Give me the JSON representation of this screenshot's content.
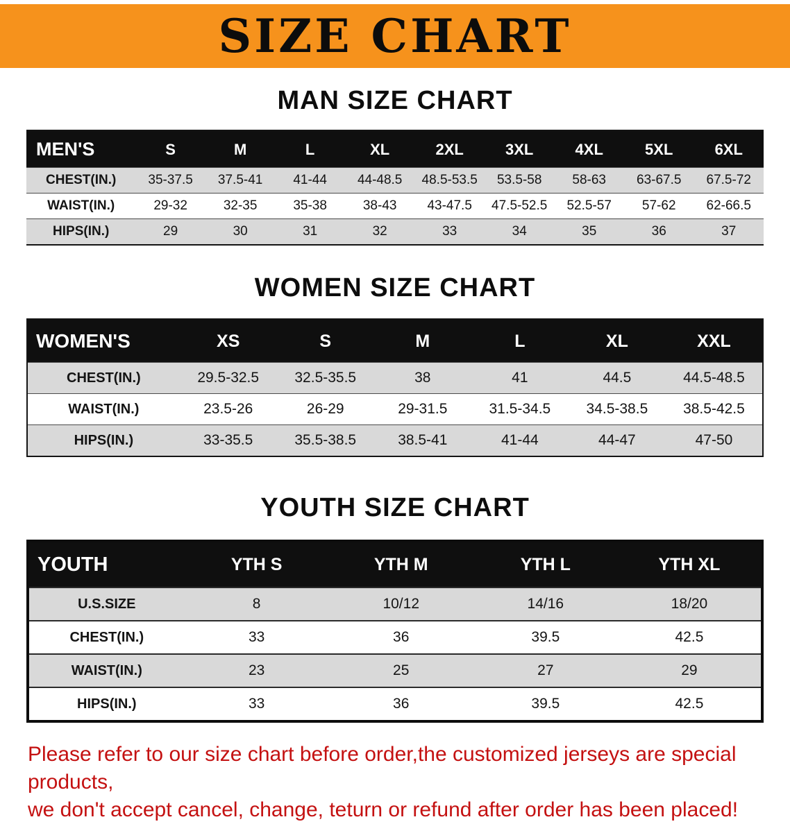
{
  "banner": {
    "title": "SIZE CHART",
    "bg_color": "#f6921c"
  },
  "sections": [
    {
      "title": "MAN SIZE CHART",
      "header": [
        "MEN'S",
        "S",
        "M",
        "L",
        "XL",
        "2XL",
        "3XL",
        "4XL",
        "5XL",
        "6XL"
      ],
      "rows": [
        [
          "CHEST(IN.)",
          "35-37.5",
          "37.5-41",
          "41-44",
          "44-48.5",
          "48.5-53.5",
          "53.5-58",
          "58-63",
          "63-67.5",
          "67.5-72"
        ],
        [
          "WAIST(IN.)",
          "29-32",
          "32-35",
          "35-38",
          "38-43",
          "43-47.5",
          "47.5-52.5",
          "52.5-57",
          "57-62",
          "62-66.5"
        ],
        [
          "HIPS(IN.)",
          "29",
          "30",
          "31",
          "32",
          "33",
          "34",
          "35",
          "36",
          "37"
        ]
      ]
    },
    {
      "title": "WOMEN SIZE CHART",
      "header": [
        "WOMEN'S",
        "XS",
        "S",
        "M",
        "L",
        "XL",
        "XXL"
      ],
      "rows": [
        [
          "CHEST(IN.)",
          "29.5-32.5",
          "32.5-35.5",
          "38",
          "41",
          "44.5",
          "44.5-48.5"
        ],
        [
          "WAIST(IN.)",
          "23.5-26",
          "26-29",
          "29-31.5",
          "31.5-34.5",
          "34.5-38.5",
          "38.5-42.5"
        ],
        [
          "HIPS(IN.)",
          "33-35.5",
          "35.5-38.5",
          "38.5-41",
          "41-44",
          "44-47",
          "47-50"
        ]
      ]
    },
    {
      "title": "YOUTH SIZE CHART",
      "header": [
        "YOUTH",
        "YTH S",
        "YTH M",
        "YTH L",
        "YTH XL"
      ],
      "rows": [
        [
          "U.S.SIZE",
          "8",
          "10/12",
          "14/16",
          "18/20"
        ],
        [
          "CHEST(IN.)",
          "33",
          "36",
          "39.5",
          "42.5"
        ],
        [
          "WAIST(IN.)",
          "23",
          "25",
          "27",
          "29"
        ],
        [
          "HIPS(IN.)",
          "33",
          "36",
          "39.5",
          "42.5"
        ]
      ]
    }
  ],
  "footer": {
    "lines": [
      "Please refer to our size chart before order,the customized jerseys are special products,",
      "we don't accept cancel, change, teturn or refund after order has been placed!"
    ],
    "text_color": "#c41111"
  }
}
